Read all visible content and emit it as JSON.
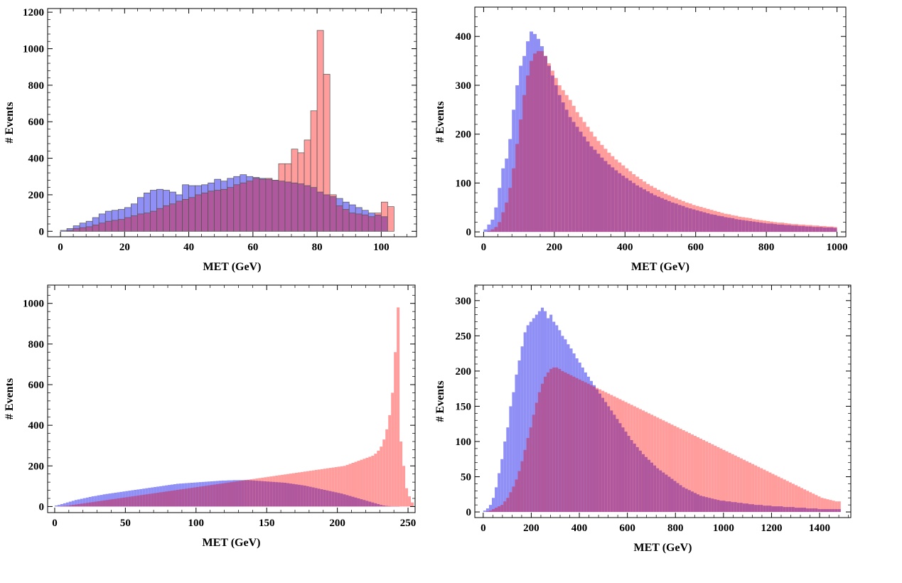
{
  "colors": {
    "blue": "#8f8ff5",
    "red": "#ff9c9c",
    "overlap": "#b0589e",
    "blue_edge": "#4a4a8a",
    "red_edge": "#8a4a4a"
  },
  "chart_data": [
    {
      "type": "histogram",
      "title": "",
      "xlabel": "MET (GeV)",
      "ylabel": "# Events",
      "xlim": [
        -4,
        111
      ],
      "ylim": [
        -30,
        1220
      ],
      "xticks": [
        0,
        20,
        40,
        60,
        80,
        100
      ],
      "yticks": [
        0,
        200,
        400,
        600,
        800,
        1000,
        1200
      ],
      "bin_start": 0,
      "bin_width": 2,
      "outlined": true,
      "series": [
        {
          "name": "blue",
          "color": "#8f8ff5",
          "values": [
            5,
            15,
            30,
            45,
            55,
            75,
            95,
            110,
            115,
            120,
            130,
            150,
            185,
            210,
            225,
            230,
            225,
            215,
            200,
            255,
            250,
            250,
            255,
            265,
            285,
            275,
            290,
            300,
            310,
            300,
            295,
            290,
            285,
            280,
            275,
            270,
            265,
            260,
            250,
            240,
            215,
            200,
            190,
            180,
            160,
            145,
            130,
            115,
            100,
            90,
            80
          ]
        },
        {
          "name": "red",
          "color": "#ff9c9c",
          "values": [
            0,
            5,
            15,
            20,
            25,
            35,
            45,
            55,
            60,
            65,
            75,
            85,
            95,
            100,
            110,
            125,
            140,
            150,
            165,
            175,
            185,
            200,
            210,
            220,
            225,
            230,
            240,
            255,
            265,
            275,
            290,
            285,
            290,
            280,
            370,
            370,
            450,
            430,
            500,
            660,
            1100,
            860,
            200,
            140,
            120,
            100,
            95,
            90,
            80,
            100,
            160,
            135
          ]
        }
      ]
    },
    {
      "type": "histogram",
      "title": "",
      "xlabel": "MET (GeV)",
      "ylabel": "# Events",
      "xlim": [
        -25,
        1025
      ],
      "ylim": [
        -10,
        460
      ],
      "xticks": [
        0,
        200,
        400,
        600,
        800,
        1000
      ],
      "yticks": [
        0,
        100,
        200,
        300,
        400
      ],
      "bin_start": 0,
      "bin_width": 10,
      "outlined": false,
      "series": [
        {
          "name": "blue",
          "color": "#8f8ff5",
          "values": [
            5,
            15,
            25,
            50,
            90,
            130,
            150,
            190,
            250,
            300,
            340,
            360,
            390,
            410,
            405,
            395,
            380,
            360,
            340,
            320,
            300,
            280,
            265,
            250,
            235,
            225,
            215,
            205,
            195,
            185,
            175,
            168,
            160,
            152,
            145,
            138,
            132,
            126,
            120,
            115,
            110,
            105,
            100,
            95,
            91,
            87,
            83,
            79,
            75,
            72,
            69,
            66,
            63,
            60,
            58,
            55,
            53,
            50,
            48,
            46,
            44,
            42,
            40,
            38,
            36,
            35,
            33,
            32,
            30,
            29,
            28,
            26,
            25,
            24,
            23,
            22,
            21,
            20,
            19,
            18,
            17,
            17,
            16,
            15,
            15,
            14,
            14,
            13,
            13,
            12,
            12,
            11,
            11,
            10,
            10,
            10,
            9,
            9,
            9,
            8
          ]
        },
        {
          "name": "red",
          "color": "#ff9c9c",
          "values": [
            0,
            2,
            5,
            10,
            20,
            40,
            60,
            90,
            130,
            180,
            230,
            280,
            320,
            350,
            365,
            370,
            370,
            360,
            345,
            330,
            315,
            300,
            290,
            280,
            270,
            258,
            245,
            235,
            225,
            215,
            205,
            195,
            186,
            178,
            170,
            162,
            155,
            148,
            142,
            136,
            130,
            124,
            118,
            113,
            108,
            103,
            98,
            94,
            90,
            86,
            82,
            78,
            75,
            72,
            69,
            66,
            63,
            60,
            58,
            55,
            53,
            51,
            49,
            47,
            45,
            43,
            41,
            39,
            37,
            36,
            34,
            33,
            31,
            30,
            29,
            28,
            26,
            25,
            24,
            23,
            22,
            21,
            20,
            19,
            19,
            18,
            17,
            16,
            16,
            15,
            15,
            14,
            14,
            13,
            13,
            12,
            12,
            11,
            11,
            10
          ]
        }
      ]
    },
    {
      "type": "histogram",
      "title": "",
      "xlabel": "MET (GeV)",
      "ylabel": "# Events",
      "xlim": [
        -5,
        255
      ],
      "ylim": [
        -30,
        1090
      ],
      "xticks": [
        0,
        50,
        100,
        150,
        200,
        250
      ],
      "yticks": [
        0,
        200,
        400,
        600,
        800,
        1000
      ],
      "bin_start": 0,
      "bin_width": 2,
      "outlined": false,
      "series": [
        {
          "name": "blue",
          "color": "#8f8ff5",
          "values": [
            5,
            8,
            12,
            16,
            20,
            24,
            28,
            32,
            35,
            38,
            41,
            44,
            47,
            50,
            52,
            55,
            57,
            60,
            62,
            64,
            66,
            68,
            70,
            72,
            74,
            76,
            78,
            80,
            82,
            84,
            86,
            88,
            90,
            92,
            94,
            96,
            98,
            100,
            102,
            104,
            106,
            108,
            110,
            112,
            113,
            114,
            115,
            116,
            117,
            118,
            119,
            120,
            121,
            122,
            123,
            124,
            125,
            126,
            127,
            128,
            128,
            129,
            129,
            130,
            130,
            130,
            130,
            130,
            130,
            129,
            128,
            127,
            126,
            125,
            124,
            123,
            122,
            121,
            120,
            119,
            118,
            117,
            115,
            113,
            111,
            109,
            107,
            105,
            103,
            100,
            97,
            94,
            91,
            88,
            85,
            82,
            79,
            76,
            73,
            70,
            67,
            64,
            60,
            56,
            52,
            48,
            44,
            40,
            36,
            32,
            28,
            24,
            20,
            16,
            12,
            8,
            5,
            3,
            2,
            1,
            1,
            1
          ]
        },
        {
          "name": "red",
          "color": "#ff9c9c",
          "values": [
            0,
            1,
            2,
            3,
            4,
            6,
            8,
            10,
            12,
            14,
            16,
            18,
            20,
            22,
            24,
            26,
            28,
            30,
            32,
            34,
            36,
            38,
            40,
            42,
            44,
            46,
            48,
            50,
            52,
            54,
            56,
            58,
            60,
            62,
            64,
            66,
            68,
            70,
            72,
            74,
            76,
            78,
            80,
            82,
            84,
            86,
            88,
            90,
            92,
            94,
            96,
            98,
            100,
            102,
            104,
            106,
            108,
            110,
            112,
            114,
            116,
            118,
            120,
            122,
            124,
            126,
            128,
            130,
            132,
            134,
            136,
            138,
            140,
            142,
            144,
            146,
            148,
            150,
            152,
            154,
            156,
            158,
            160,
            162,
            164,
            166,
            168,
            170,
            172,
            174,
            176,
            178,
            180,
            182,
            184,
            186,
            188,
            190,
            192,
            194,
            196,
            198,
            200,
            205,
            210,
            215,
            220,
            225,
            230,
            235,
            240,
            245,
            250,
            260,
            275,
            295,
            330,
            380,
            450,
            560,
            760,
            980,
            320,
            200,
            90,
            50,
            20
          ]
        }
      ]
    },
    {
      "type": "histogram",
      "title": "",
      "xlabel": "MET (GeV)",
      "ylabel": "# Events",
      "xlim": [
        -35,
        1530
      ],
      "ylim": [
        -8,
        322
      ],
      "xticks": [
        0,
        200,
        400,
        600,
        800,
        1000,
        1200,
        1400
      ],
      "yticks": [
        0,
        50,
        100,
        150,
        200,
        250,
        300
      ],
      "bin_start": 0,
      "bin_width": 12,
      "outlined": false,
      "series": [
        {
          "name": "blue",
          "color": "#8f8ff5",
          "values": [
            2,
            5,
            10,
            20,
            35,
            55,
            75,
            100,
            120,
            150,
            170,
            195,
            215,
            235,
            255,
            265,
            270,
            275,
            280,
            285,
            290,
            285,
            275,
            280,
            270,
            265,
            258,
            250,
            245,
            238,
            232,
            225,
            218,
            212,
            205,
            198,
            192,
            186,
            180,
            174,
            168,
            162,
            156,
            150,
            144,
            138,
            132,
            126,
            120,
            114,
            108,
            102,
            97,
            92,
            87,
            82,
            78,
            74,
            70,
            66,
            62,
            59,
            56,
            53,
            50,
            47,
            44,
            41,
            38,
            35,
            33,
            31,
            29,
            27,
            25,
            23,
            22,
            21,
            20,
            19,
            18,
            17,
            16,
            16,
            15,
            15,
            14,
            14,
            13,
            13,
            12,
            12,
            11,
            11,
            10,
            10,
            10,
            9,
            9,
            9,
            8,
            8,
            8,
            8,
            7,
            7,
            7,
            7,
            6,
            6,
            6,
            6,
            5,
            5,
            5,
            5,
            4,
            4,
            4,
            4,
            4,
            4,
            4,
            4
          ]
        },
        {
          "name": "red",
          "color": "#ff9c9c",
          "values": [
            0,
            1,
            2,
            4,
            6,
            8,
            10,
            15,
            20,
            28,
            36,
            46,
            58,
            72,
            88,
            105,
            120,
            138,
            155,
            170,
            182,
            192,
            198,
            203,
            205,
            205,
            203,
            200,
            198,
            196,
            194,
            192,
            190,
            188,
            186,
            184,
            182,
            180,
            178,
            176,
            174,
            172,
            170,
            168,
            166,
            164,
            162,
            160,
            158,
            156,
            154,
            152,
            150,
            148,
            146,
            144,
            142,
            140,
            138,
            136,
            134,
            132,
            130,
            128,
            126,
            124,
            122,
            120,
            118,
            116,
            114,
            112,
            110,
            108,
            106,
            104,
            102,
            100,
            98,
            96,
            94,
            92,
            90,
            88,
            86,
            84,
            82,
            80,
            78,
            76,
            74,
            72,
            70,
            68,
            66,
            64,
            62,
            60,
            58,
            56,
            54,
            52,
            50,
            48,
            46,
            44,
            42,
            40,
            38,
            36,
            34,
            32,
            30,
            28,
            26,
            24,
            22,
            20,
            19,
            18,
            17,
            16,
            15,
            15
          ]
        }
      ]
    }
  ]
}
